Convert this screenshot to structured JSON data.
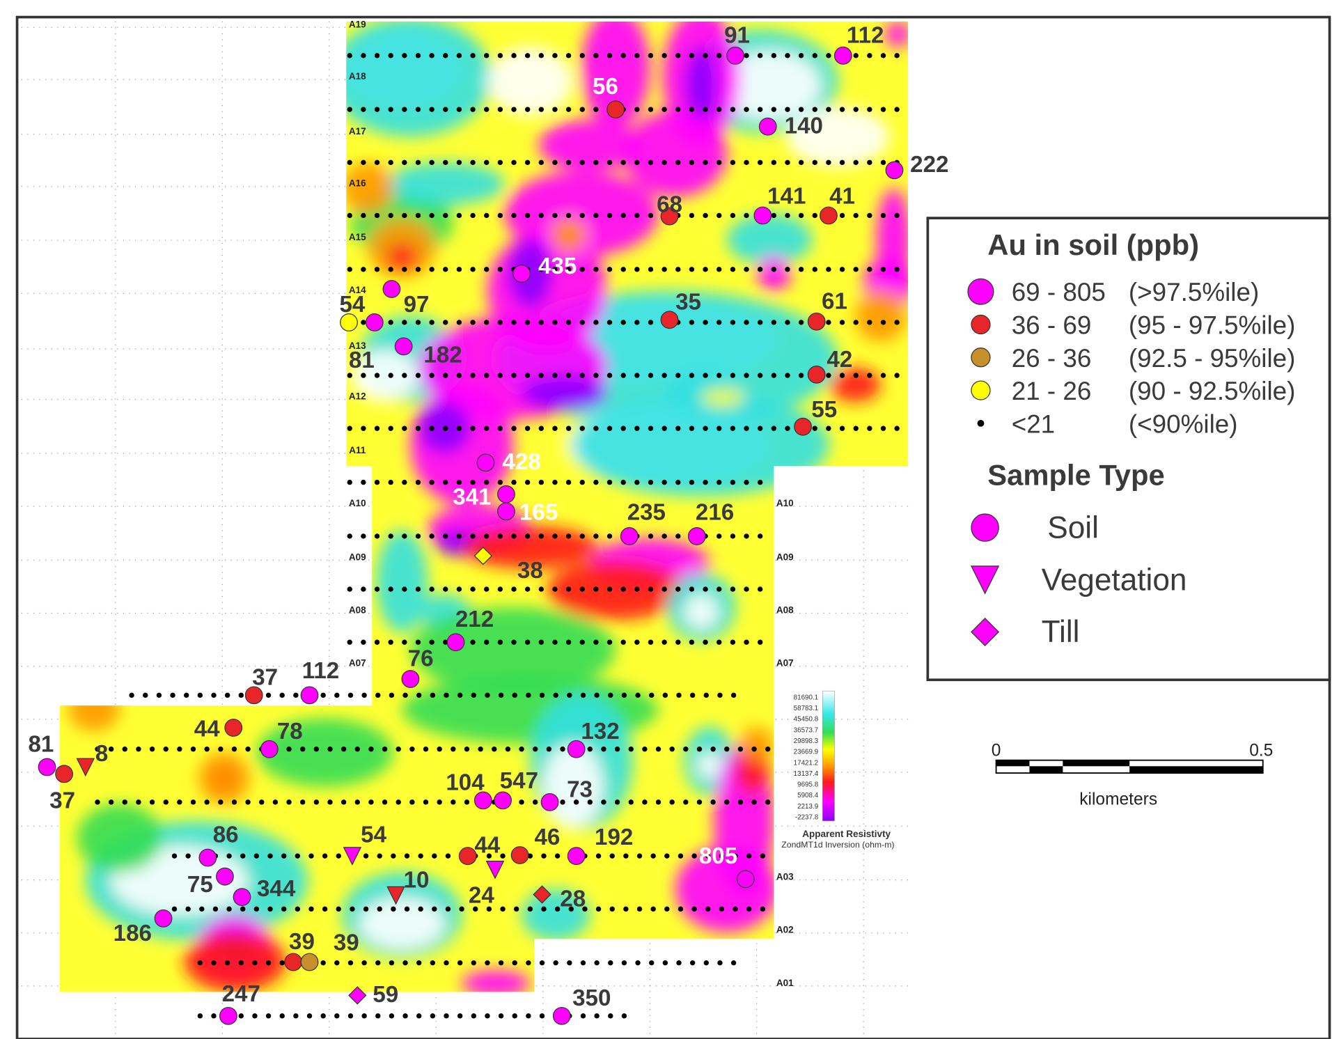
{
  "map": {
    "line_labels": [
      "A19",
      "A18",
      "A17",
      "A16",
      "A15",
      "A14",
      "A13",
      "A12",
      "A11",
      "A10",
      "A09",
      "A08",
      "A07",
      "A03",
      "A02",
      "A01"
    ],
    "samples": [
      {
        "label": "91",
        "color": "#ff00ff",
        "shape": "circle",
        "label_color": "#3a3a3a"
      },
      {
        "label": "112",
        "color": "#ff00ff",
        "shape": "circle",
        "label_color": "#3a3a3a"
      },
      {
        "label": "56",
        "color": "#e8262a",
        "shape": "circle",
        "label_color": "#ffffff"
      },
      {
        "label": "140",
        "color": "#ff00ff",
        "shape": "circle",
        "label_color": "#3a3a3a"
      },
      {
        "label": "222",
        "color": "#ff00ff",
        "shape": "circle",
        "label_color": "#3a3a3a"
      },
      {
        "label": "68",
        "color": "#e8262a",
        "shape": "circle",
        "label_color": "#3a3a3a"
      },
      {
        "label": "141",
        "color": "#ff00ff",
        "shape": "circle",
        "label_color": "#3a3a3a"
      },
      {
        "label": "41",
        "color": "#e8262a",
        "shape": "circle",
        "label_color": "#3a3a3a"
      },
      {
        "label": "435",
        "color": "#ff00ff",
        "shape": "circle",
        "label_color": "#ffffff"
      },
      {
        "label": "54",
        "color": "#ffff00",
        "shape": "circle",
        "label_color": "#3a3a3a"
      },
      {
        "label": "97",
        "color": "#ff00ff",
        "shape": "circle",
        "label_color": "#3a3a3a"
      },
      {
        "label": "81",
        "color": "#ff00ff",
        "shape": "circle",
        "label_color": "#3a3a3a"
      },
      {
        "label": "182",
        "color": "#ff00ff",
        "shape": "circle",
        "label_color": "#3a3a3a"
      },
      {
        "label": "35",
        "color": "#e8262a",
        "shape": "circle",
        "label_color": "#3a3a3a"
      },
      {
        "label": "61",
        "color": "#e8262a",
        "shape": "circle",
        "label_color": "#3a3a3a"
      },
      {
        "label": "42",
        "color": "#e8262a",
        "shape": "circle",
        "label_color": "#3a3a3a"
      },
      {
        "label": "55",
        "color": "#e8262a",
        "shape": "circle",
        "label_color": "#3a3a3a"
      },
      {
        "label": "428",
        "color": "#ff00ff",
        "shape": "circle",
        "label_color": "#ffffff"
      },
      {
        "label": "341",
        "color": "#ff00ff",
        "shape": "circle",
        "label_color": "#ffffff"
      },
      {
        "label": "165",
        "color": "#ff00ff",
        "shape": "circle",
        "label_color": "#ffffff"
      },
      {
        "label": "235",
        "color": "#ff00ff",
        "shape": "circle",
        "label_color": "#3a3a3a"
      },
      {
        "label": "216",
        "color": "#ff00ff",
        "shape": "circle",
        "label_color": "#3a3a3a"
      },
      {
        "label": "38",
        "color": "#ffff00",
        "shape": "diamond",
        "label_color": "#3a3a3a"
      },
      {
        "label": "212",
        "color": "#ff00ff",
        "shape": "circle",
        "label_color": "#3a3a3a"
      },
      {
        "label": "76",
        "color": "#ff00ff",
        "shape": "circle",
        "label_color": "#3a3a3a"
      },
      {
        "label": "37",
        "color": "#e8262a",
        "shape": "circle",
        "label_color": "#3a3a3a"
      },
      {
        "label": "112",
        "color": "#ff00ff",
        "shape": "circle",
        "label_color": "#3a3a3a"
      },
      {
        "label": "44",
        "color": "#e8262a",
        "shape": "circle",
        "label_color": "#3a3a3a"
      },
      {
        "label": "78",
        "color": "#ff00ff",
        "shape": "circle",
        "label_color": "#3a3a3a"
      },
      {
        "label": "81",
        "color": "#ff00ff",
        "shape": "circle",
        "label_color": "#3a3a3a"
      },
      {
        "label": "8",
        "color": "#e8262a",
        "shape": "triangle",
        "label_color": "#3a3a3a"
      },
      {
        "label": "37",
        "color": "#e8262a",
        "shape": "circle",
        "label_color": "#3a3a3a"
      },
      {
        "label": "132",
        "color": "#ff00ff",
        "shape": "circle",
        "label_color": "#3a3a3a"
      },
      {
        "label": "104",
        "color": "#ff00ff",
        "shape": "circle",
        "label_color": "#3a3a3a"
      },
      {
        "label": "547",
        "color": "#ff00ff",
        "shape": "circle",
        "label_color": "#3a3a3a"
      },
      {
        "label": "73",
        "color": "#ff00ff",
        "shape": "circle",
        "label_color": "#3a3a3a"
      },
      {
        "label": "86",
        "color": "#ff00ff",
        "shape": "circle",
        "label_color": "#3a3a3a"
      },
      {
        "label": "54",
        "color": "#ff00ff",
        "shape": "triangle",
        "label_color": "#3a3a3a"
      },
      {
        "label": "44",
        "color": "#e8262a",
        "shape": "circle",
        "label_color": "#3a3a3a"
      },
      {
        "label": "46",
        "color": "#e8262a",
        "shape": "circle",
        "label_color": "#3a3a3a"
      },
      {
        "label": "192",
        "color": "#ff00ff",
        "shape": "circle",
        "label_color": "#3a3a3a"
      },
      {
        "label": "805",
        "color": "#ff00ff",
        "shape": "circle",
        "label_color": "#ffffff"
      },
      {
        "label": "24",
        "color": "#ff00ff",
        "shape": "triangle",
        "label_color": "#3a3a3a"
      },
      {
        "label": "75",
        "color": "#ff00ff",
        "shape": "circle",
        "label_color": "#3a3a3a"
      },
      {
        "label": "344",
        "color": "#ff00ff",
        "shape": "circle",
        "label_color": "#3a3a3a"
      },
      {
        "label": "10",
        "color": "#e8262a",
        "shape": "triangle",
        "label_color": "#3a3a3a"
      },
      {
        "label": "28",
        "color": "#e8262a",
        "shape": "diamond",
        "label_color": "#3a3a3a"
      },
      {
        "label": "186",
        "color": "#ff00ff",
        "shape": "circle",
        "label_color": "#3a3a3a"
      },
      {
        "label": "39",
        "color": "#e8262a",
        "shape": "circle",
        "label_color": "#3a3a3a"
      },
      {
        "label": "39",
        "color": "#c8902a",
        "shape": "circle",
        "label_color": "#3a3a3a"
      },
      {
        "label": "247",
        "color": "#ff00ff",
        "shape": "circle",
        "label_color": "#3a3a3a"
      },
      {
        "label": "59",
        "color": "#ff00ff",
        "shape": "diamond",
        "label_color": "#3a3a3a"
      },
      {
        "label": "350",
        "color": "#ff00ff",
        "shape": "circle",
        "label_color": "#3a3a3a"
      }
    ],
    "legend": {
      "title": "Au in soil (ppb)",
      "classes": [
        {
          "range": "69 - 805",
          "percentile": "(>97.5%ile)",
          "color": "#ff00ff"
        },
        {
          "range": "36 - 69",
          "percentile": "(95 - 97.5%ile)",
          "color": "#e8262a"
        },
        {
          "range": "26 - 36",
          "percentile": "(92.5 - 95%ile)",
          "color": "#c8902a"
        },
        {
          "range": "21 - 26",
          "percentile": "(90 - 92.5%ile)",
          "color": "#ffff00"
        },
        {
          "range": "<21",
          "percentile": "(<90%ile)",
          "color": "#000000"
        }
      ],
      "type_title": "Sample Type",
      "types": [
        {
          "name": "Soil",
          "shape": "circle"
        },
        {
          "name": "Vegetation",
          "shape": "triangle"
        },
        {
          "name": "Till",
          "shape": "diamond"
        }
      ]
    },
    "colorbar": {
      "labels": [
        "81690.1",
        "58783.1",
        "45450.8",
        "36573.7",
        "29898.3",
        "23669.9",
        "17421.2",
        "13137.4",
        "9695.8",
        "5908.4",
        "2213.9",
        "-2237.8"
      ],
      "title": "Apparent Resistivty",
      "subtitle": "ZondMT1d Inversion (ohm-m)"
    },
    "scale_bar": {
      "start": "0",
      "end": "0.5",
      "unit": "kilometers"
    }
  }
}
